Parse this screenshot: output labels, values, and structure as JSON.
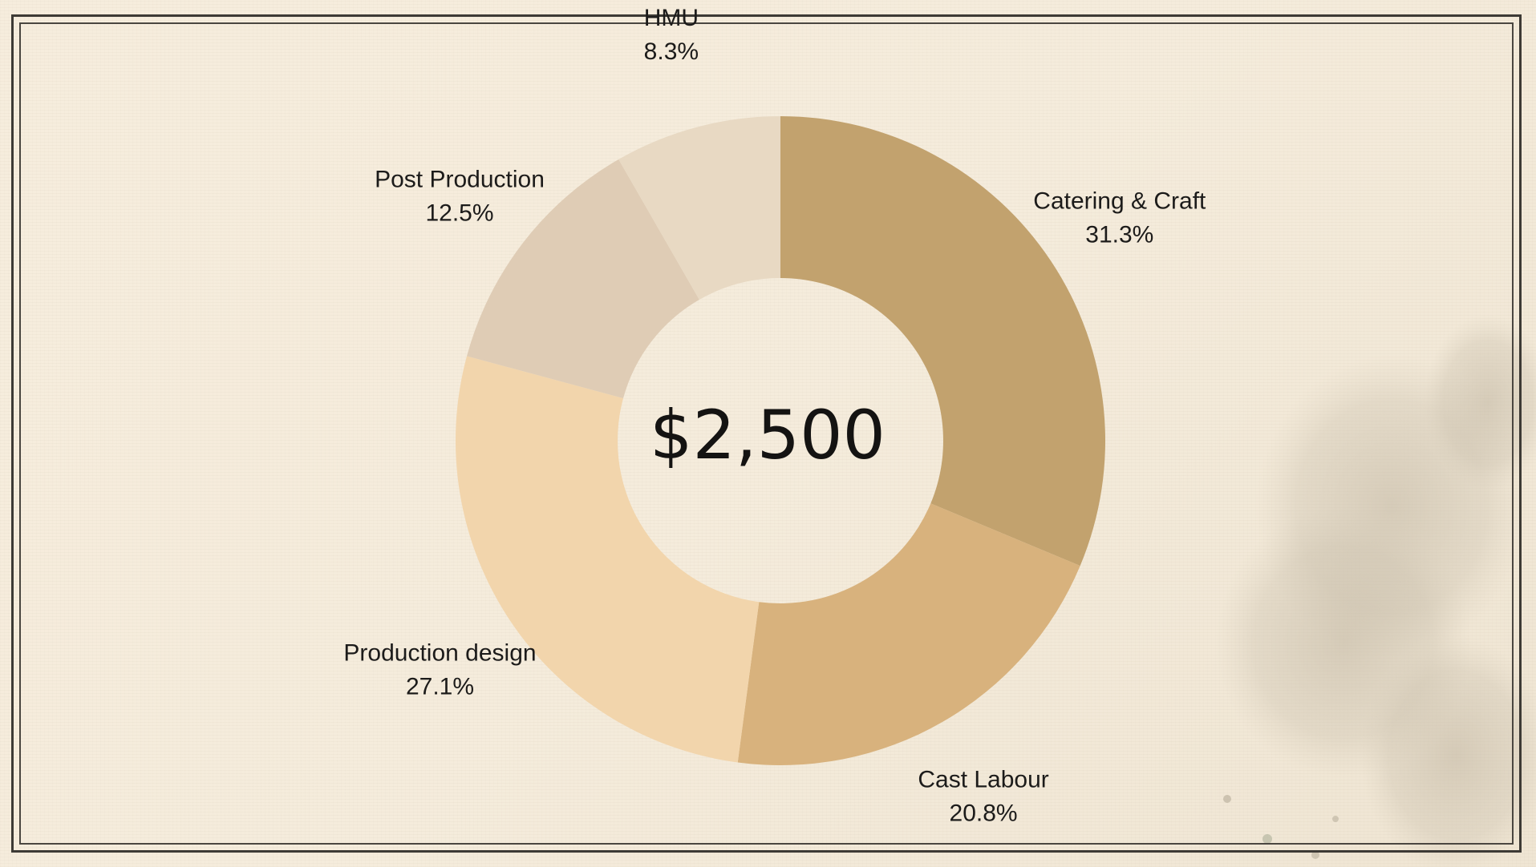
{
  "chart_data": {
    "type": "pie",
    "variant": "donut",
    "center_label": "$2,500",
    "slices": [
      {
        "label": "Catering & Craft",
        "percent_text": "31.3%",
        "value": 31.3,
        "color": "#c2a26e"
      },
      {
        "label": "Cast Labour",
        "percent_text": "20.8%",
        "value": 20.8,
        "color": "#d8b27d"
      },
      {
        "label": "Production design",
        "percent_text": "27.1%",
        "value": 27.1,
        "color": "#f2d5ac"
      },
      {
        "label": "Post Production",
        "percent_text": "12.5%",
        "value": 12.5,
        "color": "#dfccb5"
      },
      {
        "label": "HMU",
        "percent_text": "8.3%",
        "value": 8.3,
        "color": "#e8d9c3"
      }
    ],
    "start_angle_deg": 0,
    "direction": "clockwise",
    "legend": "none"
  },
  "colors": {
    "background": "#f5ecdc",
    "frame": "#3d3a35",
    "text": "#1c1b1a"
  }
}
